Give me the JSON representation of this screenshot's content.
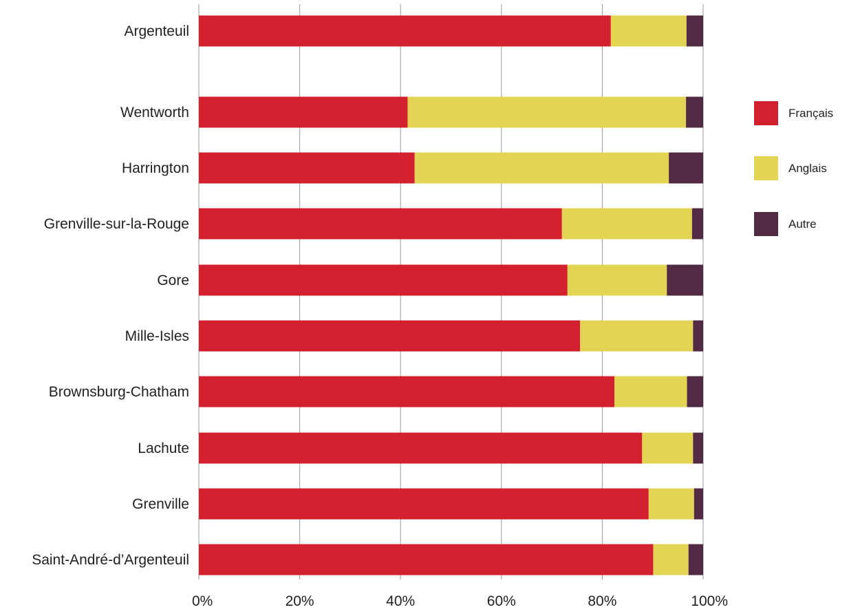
{
  "chart_data": {
    "type": "bar",
    "orientation": "horizontal",
    "stacked": true,
    "categories": [
      "Argenteuil",
      "Wentworth",
      "Harrington",
      "Grenville-sur-la-Rouge",
      "Gore",
      "Mille-Isles",
      "Brownsburg-Chatham",
      "Lachute",
      "Grenville",
      "Saint-André-d’Argenteuil"
    ],
    "series": [
      {
        "name": "Français",
        "color": "#d3202f",
        "values": [
          81.7,
          41.4,
          42.8,
          72.0,
          73.1,
          75.6,
          82.4,
          87.9,
          89.2,
          90.1
        ]
      },
      {
        "name": "Anglais",
        "color": "#e3d454",
        "values": [
          15.0,
          55.2,
          50.4,
          25.8,
          19.7,
          22.4,
          14.4,
          10.1,
          9.0,
          7.0
        ]
      },
      {
        "name": "Autre",
        "color": "#532a44",
        "values": [
          3.3,
          3.4,
          6.8,
          2.2,
          7.2,
          2.0,
          3.2,
          2.0,
          1.8,
          2.9
        ]
      }
    ],
    "xlim": [
      0,
      100
    ],
    "xticks": [
      "0%",
      "20%",
      "40%",
      "60%",
      "80%",
      "100%"
    ],
    "grid": true,
    "legend_position": "right",
    "title": "",
    "xlabel": "",
    "ylabel": ""
  }
}
